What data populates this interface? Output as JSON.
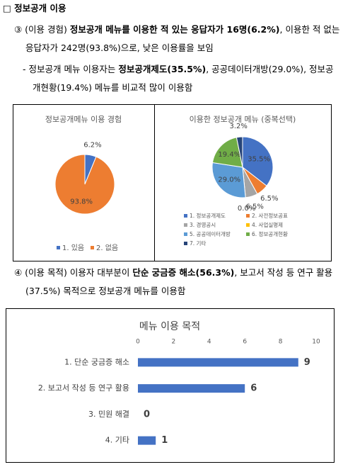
{
  "heading": "□ 정보공개 이용",
  "paragraphs": [
    {
      "lead": "③ (이용 경험) ",
      "bold": "정보공개 메뉴를 이용한 적 있는 응답자가 16명(6.2%)",
      "rest": ", 이용한 적 없는 응답자가 242명(93.8%)으로, 낮은 이용률을 보임"
    },
    {
      "lead": "- 정보공개 메뉴 이용자는 ",
      "bold": "정보공개제도(35.5%)",
      "rest": ", 공공데이터개방(29.0%), 정보공개현황(19.4%) 메뉴를 비교적 많이 이용함"
    },
    {
      "lead": "④ (이용 목적) 이용자 대부분이 ",
      "bold": "단순 궁금증 해소(56.3%)",
      "rest": ", 보고서 작성 등 연구 활용(37.5%) 목적으로 정보공개 메뉴를 이용함"
    }
  ],
  "chart_data": [
    {
      "type": "pie",
      "title": "정보공개메뉴 이용 경험",
      "categories": [
        "1. 있음",
        "2. 없음"
      ],
      "values": [
        6.2,
        93.8
      ],
      "value_labels": [
        "6.2%",
        "93.8%"
      ],
      "colors": [
        "#4472c4",
        "#ed7d31"
      ],
      "legend": "bottom"
    },
    {
      "type": "pie",
      "title": "이용한 정보공개 메뉴 (중복선택)",
      "categories": [
        "1. 정보공개제도",
        "2. 사전정보공표",
        "3. 경영공시",
        "4. 사업실명제",
        "5. 공공데이터개방",
        "6. 정보공개현황",
        "7. 기타"
      ],
      "values": [
        35.5,
        6.5,
        6.5,
        0.0,
        29.0,
        19.4,
        3.2
      ],
      "value_labels": [
        "35.5%",
        "6.5%",
        "6.5%",
        "0.0%",
        "29.0%",
        "19.4%",
        "3.2%"
      ],
      "colors": [
        "#4472c4",
        "#ed7d31",
        "#a5a5a5",
        "#ffc000",
        "#5b9bd5",
        "#70ad47",
        "#264478"
      ],
      "legend": "bottom"
    },
    {
      "type": "barh",
      "title": "메뉴 이용 목적",
      "categories": [
        "1. 단순 궁금증 해소",
        "2. 보고서 작성 등 연구 활용",
        "3. 민원 해결",
        "4. 기타"
      ],
      "values": [
        9,
        6,
        0,
        1
      ],
      "color": "#4472c4",
      "xlim": [
        0,
        10
      ],
      "xticks": [
        0,
        2,
        4,
        6,
        8,
        10
      ],
      "grid": false
    }
  ]
}
